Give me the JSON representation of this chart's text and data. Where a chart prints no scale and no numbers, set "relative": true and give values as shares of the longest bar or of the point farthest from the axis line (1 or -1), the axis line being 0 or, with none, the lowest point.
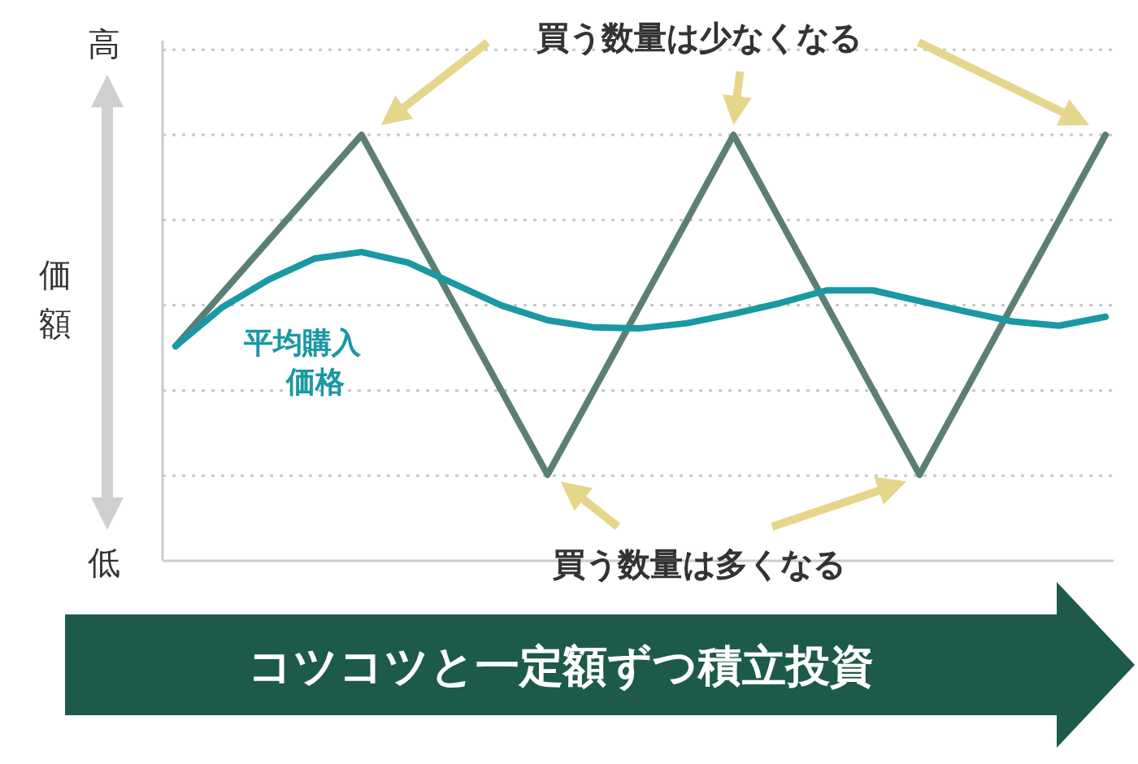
{
  "chart_data": {
    "type": "line",
    "relative": true,
    "ylabel": "価額",
    "xlabel": "コツコツと一定額ずつ積立投資",
    "grid": "y",
    "categories": [
      null,
      null,
      null,
      null,
      null,
      null,
      null,
      null,
      null,
      null,
      null,
      null,
      null,
      null,
      null,
      null,
      null,
      null,
      null,
      null,
      null
    ],
    "annotations": [
      "高",
      "低",
      "買う数量は少なくなる",
      "買う数量は多くなる"
    ],
    "series": [
      {
        "color": "#5b8073",
        "values": [
          0.504,
          0.628,
          0.752,
          0.876,
          1,
          0.8,
          0.601,
          0.401,
          0.202,
          0.401,
          0.601,
          0.8,
          1,
          0.8,
          0.601,
          0.401,
          0.202,
          0.401,
          0.601,
          0.8,
          1
        ]
      },
      {
        "name": "平均購入価格",
        "color": "#1a98a3",
        "values": [
          0.504,
          0.595,
          0.66,
          0.71,
          0.725,
          0.7,
          0.65,
          0.6,
          0.565,
          0.548,
          0.546,
          0.558,
          0.58,
          0.605,
          0.635,
          0.635,
          0.61,
          0.585,
          0.562,
          0.552,
          0.573
        ]
      }
    ]
  }
}
